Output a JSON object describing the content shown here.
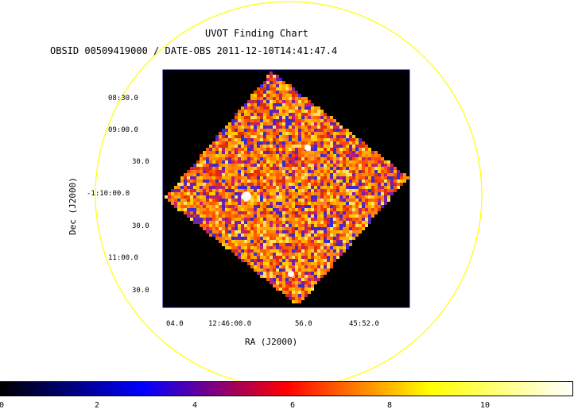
{
  "header": {
    "title": "UVOT Finding Chart",
    "subtitle": "OBSID 00509419000 / DATE-OBS 2011-12-10T14:41:47.4"
  },
  "axes": {
    "x_label": "RA (J2000)",
    "y_label": "Dec (J2000)",
    "x_ticks": [
      "04.0",
      "12:46:00.0",
      "56.0",
      "45:52.0"
    ],
    "y_ticks": [
      "08:30.0",
      "09:00.0",
      "30.0",
      "-1:10:00.0",
      "30.0",
      "11:00.0",
      "30.0"
    ]
  },
  "colorbar": {
    "ticks": [
      "0",
      "2",
      "4",
      "6",
      "8",
      "10"
    ],
    "colors": [
      "#000000",
      "#0000ff",
      "#ff0000",
      "#ffff00",
      "#ffffff"
    ]
  },
  "colors": {
    "circle": "#ffff00",
    "frame": "#00008b",
    "image_background": "#000000"
  }
}
